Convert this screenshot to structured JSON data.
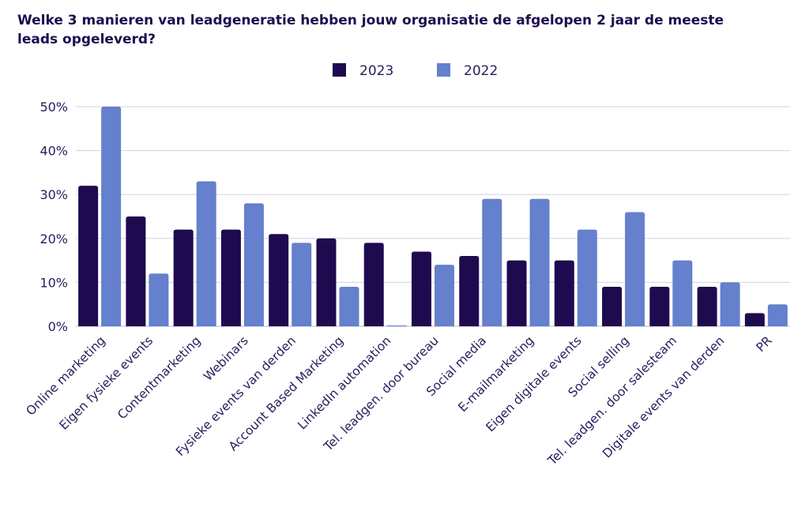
{
  "chart_data": {
    "type": "bar",
    "title": "Welke 3 manieren van leadgeneratie hebben jouw organisatie de afgelopen 2 jaar de meeste leads opgeleverd?",
    "categories": [
      "Online marketing",
      "Eigen fysieke events",
      "Contentmarketing",
      "Webinars",
      "Fysieke events van derden",
      "Account Based Marketing",
      "LinkedIn automation",
      "Tel. leadgen. door bureau",
      "Social media",
      "E-mailmarketing",
      "Eigen digitale events",
      "Social selling",
      "Tel. leadgen. door salesteam",
      "Digitale events van derden",
      "PR"
    ],
    "series": [
      {
        "name": "2023",
        "color": "#1e0a4f",
        "values": [
          32,
          25,
          22,
          22,
          21,
          20,
          19,
          17,
          16,
          15,
          15,
          9,
          9,
          9,
          3
        ]
      },
      {
        "name": "2022",
        "color": "#6580cc",
        "values": [
          50,
          12,
          33,
          28,
          19,
          9,
          0,
          14,
          29,
          29,
          22,
          26,
          15,
          10,
          5
        ]
      }
    ],
    "ylim": [
      0,
      50
    ],
    "yticks": [
      0,
      10,
      20,
      30,
      40,
      50
    ],
    "ytick_labels": [
      "0%",
      "10%",
      "20%",
      "30%",
      "40%",
      "50%"
    ],
    "xlabel": "",
    "ylabel": "",
    "grid": true,
    "legend_position": "top-center"
  }
}
